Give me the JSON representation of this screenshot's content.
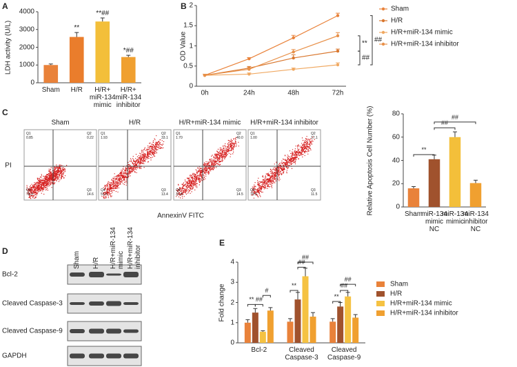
{
  "chart_data": [
    {
      "type": "bar",
      "panel": "A",
      "y_label": "LDH activity (U/L)",
      "categories": [
        "Sham",
        "H/R",
        "H/R+\nmiR-134\nmimic",
        "H/R+\nmiR-134\ninhibitor"
      ],
      "values": [
        1000,
        2580,
        3450,
        1450
      ],
      "errors": [
        60,
        250,
        200,
        100
      ],
      "colors": [
        "#e9823a",
        "#ea7d2c",
        "#f3bf3a",
        "#f0a030"
      ],
      "annotations": [
        null,
        "**",
        "**##",
        "*##"
      ],
      "ylim": [
        0,
        4000
      ],
      "yticks": [
        0,
        1000,
        2000,
        3000,
        4000
      ]
    },
    {
      "type": "line",
      "panel": "B",
      "y_label": "OD Value",
      "categories": [
        "0h",
        "24h",
        "48h",
        "72h"
      ],
      "series": [
        {
          "name": "Sham",
          "color": "#e9823a",
          "values": [
            0.27,
            0.68,
            1.2,
            1.75
          ],
          "errors": [
            0.03,
            0.03,
            0.06,
            0.06
          ]
        },
        {
          "name": "H/R",
          "color": "#d9772e",
          "values": [
            0.27,
            0.45,
            0.7,
            0.87
          ],
          "errors": [
            0.03,
            0.04,
            0.08,
            0.05
          ]
        },
        {
          "name": "H/R+miR-134 mimic",
          "color": "#f0a860",
          "values": [
            0.27,
            0.3,
            0.42,
            0.53
          ],
          "errors": [
            0.03,
            0.03,
            0.03,
            0.05
          ]
        },
        {
          "name": "H/R+miR-134 inhibitor",
          "color": "#e8914a",
          "values": [
            0.27,
            0.42,
            0.85,
            1.25
          ],
          "errors": [
            0.03,
            0.04,
            0.06,
            0.08
          ]
        }
      ],
      "brackets": [
        {
          "label": "##",
          "from": 1.75,
          "to": 0.53
        },
        {
          "label": "**",
          "from": 1.25,
          "to": 0.87
        },
        {
          "label": "##",
          "from": 0.87,
          "to": 0.53
        }
      ],
      "ylim": [
        0,
        2
      ],
      "yticks": [
        0,
        0.5,
        1,
        1.5,
        2
      ]
    },
    {
      "type": "bar",
      "y_label": "Relative Apoptosis Cell Number (%)",
      "categories": [
        "Sham",
        "miR-134\nmimic\nNC",
        "miR-134\nmimic",
        "miR-134\ninhibitor\nNC"
      ],
      "values": [
        16,
        41,
        60,
        20.5
      ],
      "errors": [
        1.5,
        3.5,
        4.5,
        2.5
      ],
      "colors": [
        "#e9823a",
        "#a0522d",
        "#f3bf3a",
        "#f0a030"
      ],
      "brackets": [
        {
          "label": "**",
          "from": 0,
          "to": 1,
          "y": 45
        },
        {
          "label": "##",
          "from": 1,
          "to": 2,
          "y": 68
        },
        {
          "label": "##",
          "from": 1,
          "to": 3,
          "y": 73
        }
      ],
      "ylim": [
        0,
        80
      ],
      "yticks": [
        0,
        20,
        40,
        60,
        80
      ]
    },
    {
      "type": "grouped_bar",
      "panel": "E",
      "y_label": "Fold change",
      "categories": [
        "Bcl-2",
        "Cleaved\nCaspase-3",
        "Cleaved\nCaspase-9"
      ],
      "series": [
        {
          "name": "Sham",
          "color": "#e9823a",
          "values": [
            1.0,
            1.05,
            1.05
          ],
          "errors": [
            0.15,
            0.15,
            0.15
          ]
        },
        {
          "name": "H/R",
          "color": "#a0522d",
          "values": [
            1.5,
            2.15,
            1.8
          ],
          "errors": [
            0.2,
            0.35,
            0.2
          ]
        },
        {
          "name": "H/R+miR-134 mimic",
          "color": "#f5c242",
          "values": [
            0.55,
            3.3,
            2.3
          ],
          "errors": [
            0.05,
            0.4,
            0.2
          ]
        },
        {
          "name": "H/R+miR-134 inhibitor",
          "color": "#f0a030",
          "values": [
            1.6,
            1.3,
            1.25
          ],
          "errors": [
            0.15,
            0.2,
            0.15
          ]
        }
      ],
      "brackets": [
        {
          "group": 0,
          "label": "**",
          "from": 0,
          "to": 1,
          "y": 1.9
        },
        {
          "group": 0,
          "label": "##",
          "from": 1,
          "to": 2,
          "y": 1.9
        },
        {
          "group": 0,
          "label": "#",
          "from": 2,
          "to": 3,
          "y": 2.35
        },
        {
          "group": 1,
          "label": "**",
          "from": 0,
          "to": 1,
          "y": 2.6
        },
        {
          "group": 1,
          "label": "##",
          "from": 1,
          "to": 2,
          "y": 3.75
        },
        {
          "group": 1,
          "label": "##",
          "from": 1,
          "to": 3,
          "y": 4.0
        },
        {
          "group": 2,
          "label": "**",
          "from": 0,
          "to": 1,
          "y": 2.05
        },
        {
          "group": 2,
          "label": "##",
          "from": 1,
          "to": 2,
          "y": 2.6
        },
        {
          "group": 2,
          "label": "##",
          "from": 1,
          "to": 3,
          "y": 2.9
        }
      ],
      "ylim": [
        0,
        4
      ],
      "yticks": [
        0,
        1,
        2,
        3,
        4
      ]
    }
  ],
  "flow": {
    "panel": "C",
    "titles": [
      "Sham",
      "H/R",
      "H/R+miR-134 mimic",
      "H/R+miR-134 inhibitor"
    ],
    "quadrant_names": [
      "Q1",
      "Q2",
      "Q3",
      "Q4"
    ],
    "quadrant_values": [
      [
        "0.85",
        "0.22",
        "14.6",
        "78.3"
      ],
      [
        "1.93",
        "33.1",
        "13.4",
        "51.5"
      ],
      [
        "1.70",
        "40.0",
        "14.5",
        "37.8"
      ],
      [
        "1.00",
        "17.1",
        "11.5",
        "70.5"
      ]
    ],
    "x_label": "AnnexinV FITC",
    "y_label": "PI"
  },
  "blot": {
    "panel": "D",
    "columns": [
      "Sham",
      "H/R",
      "H/R+miR-134\nmimic",
      "H/R+miR-134\ninhibitor"
    ],
    "rows": [
      "Bcl-2",
      "Cleaved Caspase-3",
      "Cleaved Caspase-9",
      "GAPDH"
    ]
  }
}
